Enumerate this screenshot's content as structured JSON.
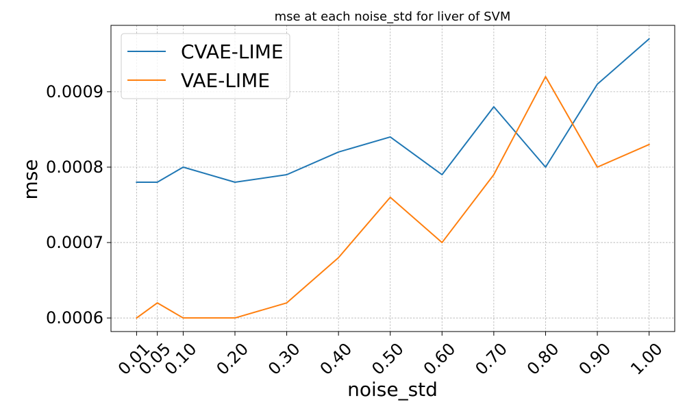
{
  "chart_data": {
    "type": "line",
    "title": "mse at each noise_std for liver of SVM",
    "xlabel": "noise_std",
    "ylabel": "mse",
    "x": [
      0.01,
      0.05,
      0.1,
      0.2,
      0.3,
      0.4,
      0.5,
      0.6,
      0.7,
      0.8,
      0.9,
      1.0
    ],
    "x_tick_labels": [
      "0.01",
      "0.05",
      "0.10",
      "0.20",
      "0.30",
      "0.40",
      "0.50",
      "0.60",
      "0.70",
      "0.80",
      "0.90",
      "1.00"
    ],
    "y_ticks": [
      0.0006,
      0.0007,
      0.0008,
      0.0009
    ],
    "y_tick_labels": [
      "0.0006",
      "0.0007",
      "0.0008",
      "0.0009"
    ],
    "xlim": [
      -0.0395,
      1.0495
    ],
    "ylim": [
      0.000582,
      0.000988
    ],
    "grid": true,
    "legend_position": "top-left",
    "series": [
      {
        "name": "CVAE-LIME",
        "color": "#1f77b4",
        "values": [
          0.00078,
          0.00078,
          0.0008,
          0.00078,
          0.00079,
          0.00082,
          0.00084,
          0.00079,
          0.00088,
          0.0008,
          0.00091,
          0.00097
        ]
      },
      {
        "name": "VAE-LIME",
        "color": "#ff7f0e",
        "values": [
          0.0006,
          0.00062,
          0.0006,
          0.0006,
          0.00062,
          0.00068,
          0.00076,
          0.0007,
          0.00079,
          0.00092,
          0.0008,
          0.00083
        ]
      }
    ]
  }
}
